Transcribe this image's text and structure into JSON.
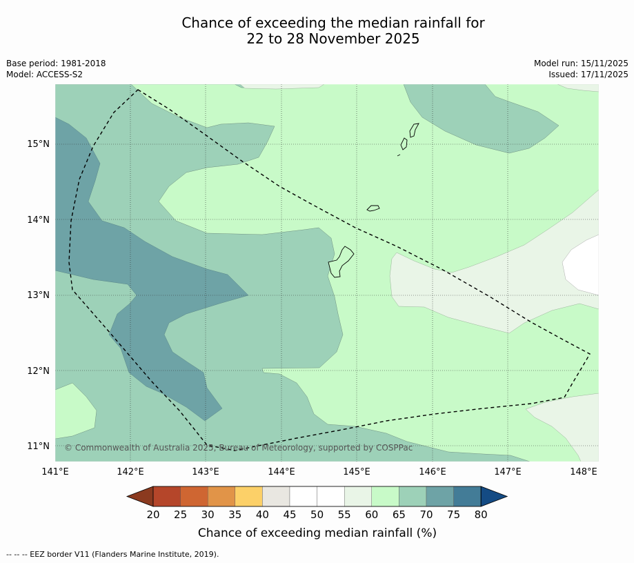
{
  "title": {
    "line1": "Chance of exceeding the median rainfall for",
    "line2": "22 to 28 November 2025"
  },
  "meta_left": {
    "base_period": "Base period: 1981-2018",
    "model": "Model: ACCESS-S2"
  },
  "meta_right": {
    "model_run": "Model run: 15/11/2025",
    "issued": "Issued: 17/11/2025"
  },
  "map": {
    "lat_labels": [
      "15°N",
      "14°N",
      "13°N",
      "12°N",
      "11°N"
    ],
    "lon_labels": [
      "141°E",
      "142°E",
      "143°E",
      "144°E",
      "145°E",
      "146°E",
      "147°E",
      "148°E"
    ],
    "copyright": "© Commonwealth of Australia 2025, Bureau of Meteorology, supported by COSPPac"
  },
  "legend": {
    "ticks": [
      "20",
      "25",
      "30",
      "35",
      "40",
      "45",
      "50",
      "55",
      "60",
      "65",
      "70",
      "75",
      "80"
    ],
    "colors": [
      "#8b3a1f",
      "#b5462a",
      "#cf6632",
      "#e19448",
      "#fcd068",
      "#e9e7e1",
      "#ffffff",
      "#ffffff",
      "#e9f5e7",
      "#c8fac8",
      "#9dd1b8",
      "#6ea3a6",
      "#437c97",
      "#144b84"
    ],
    "label": "Chance of exceeding median rainfall (%)"
  },
  "footer": "--  --  -- EEZ border V11 (Flanders Marine Institute, 2019)."
}
